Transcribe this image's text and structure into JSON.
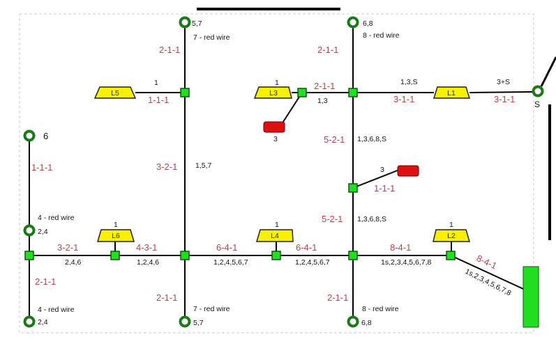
{
  "colors": {
    "node": "#22dd22",
    "lamp": "#f7f000",
    "socket": "#dd1111",
    "wire_label": "#c0404a",
    "terminal": "#1a7a1a",
    "panel": "#22dd22"
  },
  "lamps": [
    "L5",
    "L3",
    "L1",
    "L6",
    "L4",
    "L2"
  ],
  "lamp_counts": [
    "1",
    "1",
    "1",
    "1",
    "1"
  ],
  "terminals": {
    "top_left": "5,7",
    "top_left_note": "7 - red wire",
    "top_right": "6,8",
    "top_right_note": "8 - red wire",
    "left_top": "6",
    "left_mid": "2,4",
    "left_mid_note": "4 - red wire",
    "left_bottom": "2,4",
    "left_bottom_note": "4 - red wire",
    "bottom_mid": "5,7",
    "bottom_mid_note": "7 - red wire",
    "bottom_right": "6,8",
    "bottom_right_note": "8 - red wire",
    "source": "S"
  },
  "sockets": [
    "3",
    "3"
  ],
  "cable_types": [
    "2-1-1",
    "1-1-1",
    "3-2-1",
    "2-1-1",
    "2-1-1",
    "3-1-1",
    "3-1-1",
    "5-2-1",
    "1-1-1",
    "5-2-1",
    "1-1-1",
    "3-2-1",
    "4-3-1",
    "6-4-1",
    "6-4-1",
    "8-4-1",
    "8-4-1",
    "2-1-1",
    "2-1-1",
    "2-1-1"
  ],
  "conductors": [
    "1",
    "1,5,7",
    "1,3",
    "1,3,S",
    "3+S",
    "1,3,6,8,S",
    "1,3,6,8,S",
    "2,4,6",
    "1,2,4,6",
    "1,2,4,5,6,7",
    "1,2,4,5,6,7",
    "1s,2,3,4,5,6,7,8",
    "1s,2,3,4,5,6,7,8"
  ]
}
